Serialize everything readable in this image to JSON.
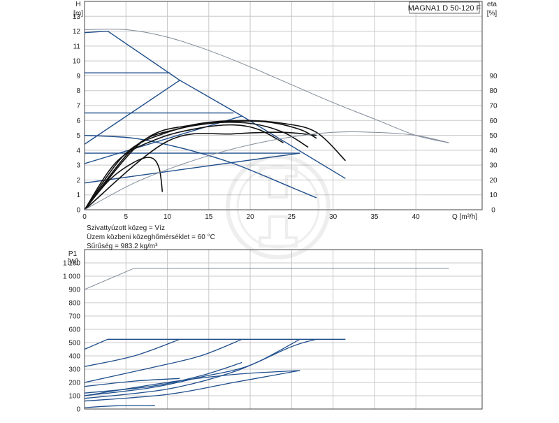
{
  "colors": {
    "curve_blue": "#1f4e8c",
    "curve_black": "#111111",
    "curve_gray": "#7f8a99",
    "grid": "#c8c8c8",
    "axis": "#444444"
  },
  "chart_data": [
    {
      "type": "line",
      "title": "MAGNA1 D 50-120 F",
      "xlabel": "Q [m³/h]",
      "ylabel_lines": [
        "H",
        "[m]"
      ],
      "y2label_lines": [
        "eta",
        "[%]"
      ],
      "xlim": [
        0,
        48
      ],
      "ylim": [
        0,
        14
      ],
      "y2lim": [
        0,
        140
      ],
      "grid": true,
      "x_ticks": [
        "0",
        "5",
        "10",
        "15",
        "20",
        "25",
        "30",
        "35",
        "40"
      ],
      "y_ticks": [
        "0",
        "1",
        "2",
        "3",
        "4",
        "5",
        "6",
        "7",
        "8",
        "9",
        "10",
        "11",
        "12",
        "13"
      ],
      "y2_ticks": [
        "0",
        "10",
        "20",
        "30",
        "40",
        "50",
        "60",
        "70",
        "80",
        "90"
      ],
      "notes": [
        "Szivattyúzott közeg = Víz",
        "Üzem közbeni közeghőmérséklet = 60 °C",
        "Sűrűség = 983.2 kg/m³"
      ],
      "series": [
        {
          "role": "max-curve-single",
          "color": "curve_blue",
          "axis": "left",
          "points": [
            [
              0,
              11.9
            ],
            [
              2.8,
              12
            ],
            [
              11.5,
              8.7
            ],
            [
              19,
              6.3
            ],
            [
              31.5,
              2.1
            ]
          ]
        },
        {
          "role": "const-pressure",
          "color": "curve_blue",
          "axis": "left",
          "points": [
            [
              0,
              9.2
            ],
            [
              10.3,
              9.2
            ]
          ]
        },
        {
          "role": "const-pressure",
          "color": "curve_blue",
          "axis": "left",
          "points": [
            [
              0,
              6.5
            ],
            [
              18,
              6.5
            ]
          ]
        },
        {
          "role": "const-pressure",
          "color": "curve_blue",
          "axis": "left",
          "points": [
            [
              0,
              3.8
            ],
            [
              26,
              3.8
            ]
          ]
        },
        {
          "role": "prop-pressure",
          "color": "curve_blue",
          "axis": "left",
          "points": [
            [
              0,
              4.4
            ],
            [
              11.5,
              8.7
            ]
          ]
        },
        {
          "role": "prop-pressure",
          "color": "curve_blue",
          "axis": "left",
          "points": [
            [
              0,
              3.1
            ],
            [
              19,
              6.3
            ]
          ]
        },
        {
          "role": "prop-pressure",
          "color": "curve_blue",
          "axis": "left",
          "points": [
            [
              0,
              1.8
            ],
            [
              26,
              3.8
            ]
          ]
        },
        {
          "role": "min-curve",
          "color": "curve_blue",
          "axis": "left",
          "points": [
            [
              0,
              5
            ],
            [
              6,
              4.8
            ],
            [
              12,
              4.1
            ],
            [
              18,
              3.1
            ],
            [
              25,
              1.5
            ],
            [
              28,
              0.8
            ]
          ]
        },
        {
          "role": "max-curve-twin",
          "color": "curve_gray",
          "axis": "left",
          "points": [
            [
              0,
              12.1
            ],
            [
              5,
              12.1
            ],
            [
              10,
              11.6
            ],
            [
              15,
              10.7
            ],
            [
              20,
              9.6
            ],
            [
              25,
              8.4
            ],
            [
              30,
              7.2
            ],
            [
              35,
              6.1
            ],
            [
              40,
              5
            ],
            [
              44,
              4.5
            ]
          ]
        },
        {
          "role": "efficiency",
          "color": "curve_black",
          "axis": "right",
          "points": [
            [
              0,
              0
            ],
            [
              3,
              20
            ],
            [
              6,
              32
            ],
            [
              8,
              35
            ],
            [
              9,
              28
            ],
            [
              9.4,
              12
            ]
          ]
        },
        {
          "role": "efficiency",
          "color": "curve_black",
          "axis": "right",
          "points": [
            [
              0,
              0
            ],
            [
              4,
              33
            ],
            [
              9,
              48
            ],
            [
              14,
              55
            ],
            [
              18,
              57
            ],
            [
              21,
              54
            ],
            [
              24,
              45
            ]
          ]
        },
        {
          "role": "efficiency",
          "color": "curve_black",
          "axis": "right",
          "points": [
            [
              0,
              0
            ],
            [
              5,
              38
            ],
            [
              10,
              52
            ],
            [
              15,
              58
            ],
            [
              20,
              58
            ],
            [
              24,
              52
            ],
            [
              27,
              42
            ]
          ]
        },
        {
          "role": "efficiency",
          "color": "curve_black",
          "axis": "right",
          "points": [
            [
              0,
              0
            ],
            [
              6,
              42
            ],
            [
              11,
              54
            ],
            [
              17,
              59
            ],
            [
              22,
              59
            ],
            [
              26,
              54
            ],
            [
              28,
              48
            ]
          ]
        },
        {
          "role": "efficiency",
          "color": "curve_black",
          "axis": "right",
          "points": [
            [
              0,
              0
            ],
            [
              7,
              46
            ],
            [
              13,
              57
            ],
            [
              19,
              60
            ],
            [
              24,
              58
            ],
            [
              28,
              52
            ],
            [
              31.5,
              33
            ]
          ]
        },
        {
          "role": "efficiency",
          "color": "curve_black",
          "axis": "right",
          "points": [
            [
              0,
              0
            ],
            [
              10,
              46
            ],
            [
              18,
              51
            ],
            [
              24,
              52
            ],
            [
              28,
              50
            ]
          ]
        },
        {
          "role": "efficiency-twin",
          "color": "curve_gray",
          "axis": "right",
          "points": [
            [
              0,
              0
            ],
            [
              6,
              18
            ],
            [
              12,
              31
            ],
            [
              18,
              41
            ],
            [
              24,
              48
            ],
            [
              30,
              52
            ],
            [
              35,
              52
            ],
            [
              40,
              50
            ],
            [
              44,
              45
            ]
          ]
        }
      ]
    },
    {
      "type": "line",
      "ylabel_lines": [
        "P1",
        "[W]"
      ],
      "xlim": [
        0,
        48
      ],
      "ylim": [
        0,
        1200
      ],
      "grid": true,
      "y_ticks": [
        "0",
        "100",
        "200",
        "300",
        "400",
        "500",
        "600",
        "700",
        "800",
        "900",
        "1 000",
        "1 100"
      ],
      "series": [
        {
          "role": "max-power-twin",
          "color": "curve_gray",
          "points": [
            [
              0,
              900
            ],
            [
              6,
              1060
            ],
            [
              44,
              1060
            ]
          ]
        },
        {
          "role": "max-power-single",
          "color": "curve_blue",
          "points": [
            [
              0,
              450
            ],
            [
              2.8,
              525
            ],
            [
              31.5,
              525
            ]
          ]
        },
        {
          "role": "power",
          "color": "curve_blue",
          "points": [
            [
              0,
              320
            ],
            [
              6,
              400
            ],
            [
              11.5,
              525
            ]
          ]
        },
        {
          "role": "power",
          "color": "curve_blue",
          "points": [
            [
              0,
              200
            ],
            [
              8,
              310
            ],
            [
              14,
              400
            ],
            [
              19,
              525
            ]
          ]
        },
        {
          "role": "power",
          "color": "curve_blue",
          "points": [
            [
              0,
              100
            ],
            [
              8,
              160
            ],
            [
              14,
              240
            ],
            [
              20,
              330
            ],
            [
              26,
              525
            ]
          ]
        },
        {
          "role": "power",
          "color": "curve_blue",
          "points": [
            [
              0,
              80
            ],
            [
              10,
              150
            ],
            [
              18,
              280
            ],
            [
              25,
              470
            ],
            [
              28,
              525
            ]
          ]
        },
        {
          "role": "power",
          "color": "curve_blue",
          "points": [
            [
              0,
              170
            ],
            [
              6,
              210
            ],
            [
              11.5,
              230
            ]
          ]
        },
        {
          "role": "power",
          "color": "curve_blue",
          "points": [
            [
              0,
              120
            ],
            [
              8,
              170
            ],
            [
              14,
              250
            ],
            [
              19,
              350
            ]
          ]
        },
        {
          "role": "power",
          "color": "curve_blue",
          "points": [
            [
              0,
              60
            ],
            [
              10,
              110
            ],
            [
              18,
              200
            ],
            [
              26,
              290
            ]
          ]
        },
        {
          "role": "min-power",
          "color": "curve_blue",
          "points": [
            [
              0,
              10
            ],
            [
              4,
              25
            ],
            [
              8.5,
              25
            ]
          ]
        },
        {
          "role": "low-power",
          "color": "curve_blue",
          "points": [
            [
              0,
              100
            ],
            [
              10,
              200
            ],
            [
              18,
              260
            ],
            [
              26,
              290
            ]
          ]
        }
      ]
    }
  ]
}
